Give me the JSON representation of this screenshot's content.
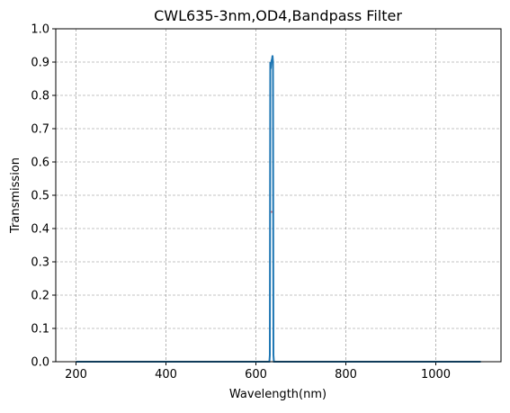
{
  "chart_data": {
    "type": "line",
    "title": "CWL635-3nm,OD4,Bandpass Filter",
    "x_label": "Wavelength(nm)",
    "y_label": "Transmission",
    "xlim": [
      155,
      1145
    ],
    "xticks": [
      200,
      400,
      600,
      800,
      1000
    ],
    "ylim": [
      0,
      1
    ],
    "yticks": [
      {
        "value": 0,
        "label": "0.0"
      },
      0.1,
      0.2,
      0.3,
      0.4,
      0.5,
      0.6,
      0.7,
      0.8,
      0.9,
      {
        "value": 1,
        "label": "1.0"
      }
    ],
    "grid": true,
    "series": [
      {
        "color": "#1f77b4",
        "x": [
          200,
          630,
          631,
          632,
          633,
          634,
          636,
          637,
          638,
          639,
          640,
          1100
        ],
        "values": [
          0,
          0,
          0.02,
          0.9,
          0.88,
          0.9,
          0.91,
          0.92,
          0.9,
          0.02,
          0,
          0
        ]
      },
      {
        "color": "#d62728",
        "x": [
          634,
          636
        ],
        "values": [
          0.45,
          0.45
        ]
      }
    ]
  }
}
